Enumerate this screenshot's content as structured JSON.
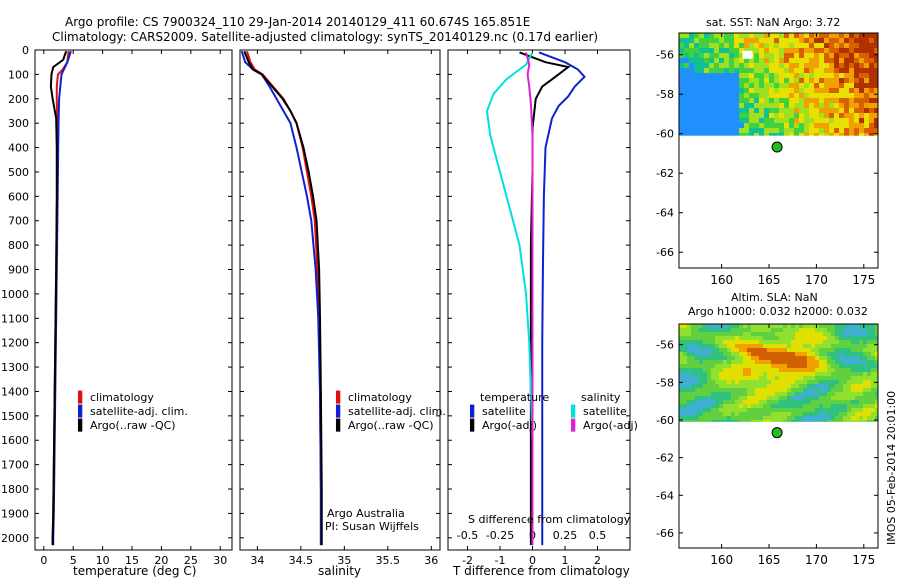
{
  "header": {
    "line1": "Argo profile: CS 7900324_110 29-Jan-2014 20140129_411 60.674S 165.851E",
    "line2": "Climatology: CARS2009. Satellite-adjusted climatology: synTS_20140129.nc (0.17d earlier)"
  },
  "colors": {
    "climatology": "#e01010",
    "satellite": "#1020d0",
    "argo": "#000000",
    "sat_diff": "#00e0e0",
    "argo_s_adj": "#e020d0"
  },
  "chart_data": [
    {
      "type": "line",
      "id": "temperature",
      "xlabel": "temperature (deg C)",
      "ylim": [
        2050,
        0
      ],
      "xlim": [
        -1.5,
        32
      ],
      "xticks": [
        0,
        5,
        10,
        15,
        20,
        25,
        30
      ],
      "yticks": [
        0,
        100,
        200,
        300,
        400,
        500,
        600,
        700,
        800,
        900,
        1000,
        1100,
        1200,
        1300,
        1400,
        1500,
        1600,
        1700,
        1800,
        1900,
        2000
      ],
      "legend": [
        "climatology",
        "satellite-adj. clim.",
        "Argo(..raw -QC)"
      ],
      "series": [
        {
          "name": "climatology",
          "color": "#e01010",
          "x": [
            4.2,
            4.0,
            3.2,
            2.4,
            2.2,
            2.2,
            2.3,
            2.3,
            2.2,
            2.1,
            2.0,
            1.9,
            1.8,
            1.7,
            1.6,
            1.5,
            1.5
          ],
          "y": [
            5,
            50,
            80,
            100,
            150,
            200,
            300,
            500,
            700,
            900,
            1100,
            1300,
            1500,
            1700,
            1900,
            2000,
            2030
          ]
        },
        {
          "name": "satellite-adj. clim.",
          "color": "#1020d0",
          "x": [
            4.6,
            4.0,
            3.4,
            3.0,
            2.8,
            2.6,
            2.5,
            2.4,
            2.3,
            2.2,
            2.1,
            2.0,
            1.9,
            1.8,
            1.7,
            1.6,
            1.6
          ],
          "y": [
            5,
            50,
            80,
            100,
            150,
            200,
            300,
            500,
            700,
            900,
            1100,
            1300,
            1500,
            1700,
            1900,
            2000,
            2030
          ]
        },
        {
          "name": "Argo(..raw -QC)",
          "color": "#000000",
          "x": [
            3.8,
            3.3,
            1.6,
            1.3,
            1.2,
            1.5,
            2.1,
            2.2,
            2.2,
            2.1,
            2.0,
            1.9,
            1.8,
            1.7,
            1.6,
            1.5,
            1.5
          ],
          "y": [
            5,
            40,
            70,
            100,
            150,
            200,
            280,
            400,
            600,
            900,
            1100,
            1300,
            1500,
            1700,
            1900,
            2000,
            2030
          ]
        }
      ]
    },
    {
      "type": "line",
      "id": "salinity",
      "xlabel": "salinity",
      "ylim": [
        2050,
        0
      ],
      "xlim": [
        33.8,
        36.1
      ],
      "xticks": [
        34,
        34.5,
        35,
        35.5,
        36
      ],
      "xticklabels": [
        "34",
        "34.5",
        "35",
        "35.5",
        "36"
      ],
      "legend": [
        "climatology",
        "satellite-adj. clim.",
        "Argo(..raw -QC)"
      ],
      "annotations": [
        "Argo Australia",
        "PI: Susan Wijffels"
      ],
      "series": [
        {
          "name": "climatology",
          "color": "#e01010",
          "x": [
            33.88,
            33.92,
            33.97,
            34.06,
            34.18,
            34.3,
            34.38,
            34.45,
            34.52,
            34.57,
            34.62,
            34.66,
            34.69,
            34.71,
            34.72,
            34.73,
            34.73
          ],
          "y": [
            5,
            50,
            80,
            100,
            150,
            200,
            250,
            300,
            400,
            500,
            600,
            700,
            900,
            1100,
            1400,
            1800,
            2030
          ]
        },
        {
          "name": "satellite-adj. clim.",
          "color": "#1020d0",
          "x": [
            33.82,
            33.86,
            33.95,
            34.05,
            34.14,
            34.22,
            34.3,
            34.38,
            34.45,
            34.51,
            34.57,
            34.62,
            34.67,
            34.7,
            34.72,
            34.73,
            34.73
          ],
          "y": [
            5,
            50,
            80,
            100,
            150,
            200,
            250,
            300,
            400,
            500,
            600,
            700,
            900,
            1100,
            1400,
            1800,
            2030
          ]
        },
        {
          "name": "Argo(..raw -QC)",
          "color": "#000000",
          "x": [
            33.85,
            33.9,
            33.95,
            34.05,
            34.17,
            34.29,
            34.38,
            34.45,
            34.53,
            34.59,
            34.64,
            34.68,
            34.71,
            34.72,
            34.73,
            34.74,
            34.74
          ],
          "y": [
            5,
            50,
            80,
            100,
            150,
            200,
            250,
            300,
            400,
            500,
            600,
            700,
            900,
            1100,
            1400,
            1800,
            2030
          ]
        }
      ]
    },
    {
      "type": "line",
      "id": "difference",
      "xlabel": "T difference from climatology",
      "xlabel_top": "S difference from climatology",
      "ylim": [
        2050,
        0
      ],
      "xlim": [
        -2.6,
        3.0
      ],
      "xticks": [
        -2,
        -1,
        0,
        1,
        2
      ],
      "s_xticklabels": [
        "-0.5",
        "-0.25",
        "0",
        "0.25",
        "0.5"
      ],
      "legend_titles": [
        "temperature",
        "salinity"
      ],
      "legend": [
        "satellite",
        "Argo(-adj)",
        "satellite",
        "Argo(-adj)"
      ],
      "series": [
        {
          "name": "satellite",
          "group": "temperature",
          "color": "#1020d0",
          "x": [
            0.2,
            0.6,
            1.0,
            1.4,
            1.6,
            1.3,
            1.1,
            0.8,
            0.6,
            0.4,
            0.35,
            0.32,
            0.3,
            0.3,
            0.3,
            0.3
          ],
          "y": [
            10,
            30,
            50,
            80,
            110,
            150,
            190,
            230,
            280,
            400,
            600,
            900,
            1200,
            1500,
            1800,
            2030
          ]
        },
        {
          "name": "Argo(-adj)",
          "group": "temperature",
          "color": "#000000",
          "x": [
            -0.4,
            0.0,
            0.4,
            1.1,
            0.8,
            0.3,
            0.1,
            0.05,
            0.0,
            0.0,
            -0.05,
            -0.05,
            -0.05,
            -0.05,
            -0.05,
            -0.05
          ],
          "y": [
            10,
            30,
            50,
            70,
            100,
            150,
            200,
            260,
            320,
            500,
            800,
            1100,
            1400,
            1700,
            1900,
            2030
          ]
        },
        {
          "name": "satellite",
          "group": "salinity",
          "color": "#00e0e0",
          "x": [
            0.0,
            -0.2,
            -0.8,
            -1.2,
            -1.4,
            -1.3,
            -1.0,
            -0.7,
            -0.4,
            -0.2,
            -0.1,
            -0.05,
            0.0,
            0.0,
            0.0
          ],
          "y": [
            10,
            60,
            120,
            180,
            250,
            350,
            500,
            650,
            800,
            1000,
            1200,
            1400,
            1600,
            1800,
            2030
          ]
        },
        {
          "name": "Argo(-adj)",
          "group": "salinity",
          "color": "#e020d0",
          "x": [
            -0.2,
            -0.1,
            -0.15,
            -0.1,
            -0.05,
            0.0,
            0.0,
            0.0,
            0.0,
            0.0,
            0.0
          ],
          "y": [
            10,
            60,
            100,
            150,
            220,
            350,
            600,
            900,
            1300,
            1700,
            2030
          ]
        }
      ]
    },
    {
      "type": "heatmap",
      "id": "sst_map",
      "title": "sat. SST: NaN Argo: 3.72",
      "xlim": [
        155.5,
        176.5
      ],
      "ylim": [
        -66.8,
        -54.9
      ],
      "xticks": [
        160,
        165,
        170,
        175
      ],
      "yticks": [
        -56,
        -58,
        -60,
        -62,
        -64,
        -66
      ],
      "data_lat_range": [
        -60.1,
        -54.9
      ],
      "argo_position": {
        "lon": 165.851,
        "lat": -60.674
      }
    },
    {
      "type": "heatmap",
      "id": "sla_map",
      "title": "Altim. SLA: NaN",
      "subtitle": "Argo h1000: 0.032 h2000: 0.032",
      "xlim": [
        155.5,
        176.5
      ],
      "ylim": [
        -66.8,
        -54.9
      ],
      "xticks": [
        160,
        165,
        170,
        175
      ],
      "yticks": [
        -56,
        -58,
        -60,
        -62,
        -64,
        -66
      ],
      "data_lat_range": [
        -60.1,
        -54.9
      ],
      "argo_position": {
        "lon": 165.851,
        "lat": -60.674
      }
    }
  ],
  "footer_stamp": "IMOS 05-Feb-2014 20:01:00"
}
